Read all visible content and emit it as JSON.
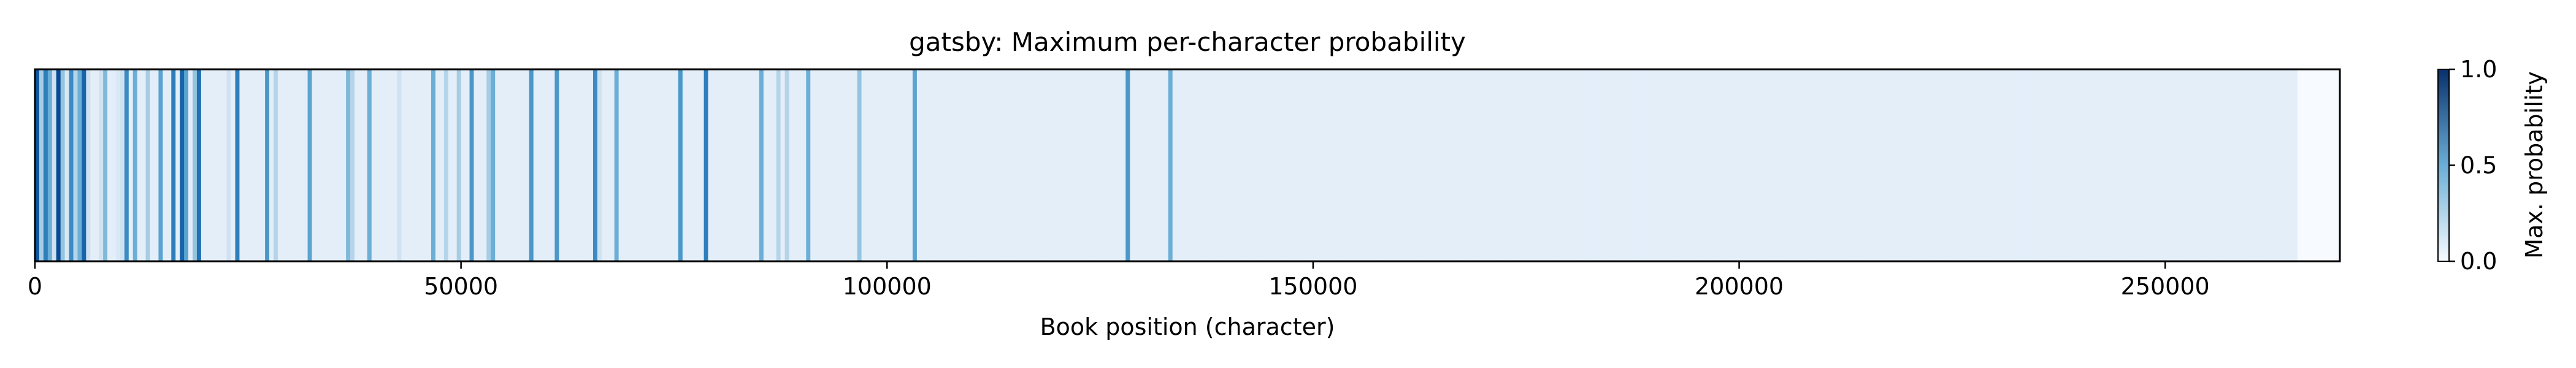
{
  "chart_data": {
    "type": "heatmap",
    "title": "gatsby: Maximum per-character probability",
    "xlabel": "Book position (character)",
    "ylabel": "",
    "xlim": [
      0,
      270500
    ],
    "x_ticks": [
      0,
      50000,
      100000,
      150000,
      200000,
      250000
    ],
    "x_tick_labels": [
      "0",
      "50000",
      "100000",
      "150000",
      "200000",
      "250000"
    ],
    "colorbar": {
      "label": "Max. probability",
      "range": [
        0.0,
        1.0
      ],
      "ticks": [
        0.0,
        0.5,
        1.0
      ],
      "tick_labels": [
        "0.0",
        "0.5",
        "1.0"
      ],
      "colormap": "Blues",
      "color_low": "#f7fbff",
      "color_high": "#08306b"
    },
    "bin_width": 500,
    "values": [
      0.85,
      0.35,
      0.7,
      0.5,
      0.2,
      0.9,
      0.4,
      0.15,
      0.65,
      0.3,
      0.5,
      0.8,
      0.2,
      0.1,
      0.1,
      0.2,
      0.45,
      0.1,
      0.1,
      0.15,
      0.2,
      0.65,
      0.1,
      0.5,
      0.1,
      0.1,
      0.35,
      0.1,
      0.1,
      0.55,
      0.1,
      0.1,
      0.7,
      0.1,
      0.8,
      0.55,
      0.1,
      0.4,
      0.75,
      0.1,
      0.1,
      0.1,
      0.1,
      0.1,
      0.1,
      0.2,
      0.1,
      0.7,
      0.1,
      0.1,
      0.1,
      0.1,
      0.1,
      0.1,
      0.6,
      0.1,
      0.3,
      0.1,
      0.1,
      0.1,
      0.1,
      0.1,
      0.1,
      0.1,
      0.55,
      0.1,
      0.1,
      0.1,
      0.1,
      0.1,
      0.1,
      0.1,
      0.1,
      0.45,
      0.3,
      0.1,
      0.1,
      0.1,
      0.5,
      0.1,
      0.1,
      0.1,
      0.1,
      0.1,
      0.1,
      0.2,
      0.1,
      0.1,
      0.1,
      0.1,
      0.1,
      0.1,
      0.1,
      0.5,
      0.1,
      0.1,
      0.3,
      0.1,
      0.1,
      0.35,
      0.1,
      0.1,
      0.6,
      0.1,
      0.1,
      0.1,
      0.35,
      0.5,
      0.1,
      0.1,
      0.1,
      0.1,
      0.1,
      0.1,
      0.1,
      0.1,
      0.6,
      0.1,
      0.1,
      0.1,
      0.1,
      0.1,
      0.6,
      0.1,
      0.1,
      0.1,
      0.1,
      0.1,
      0.1,
      0.1,
      0.1,
      0.65,
      0.2,
      0.1,
      0.1,
      0.1,
      0.5,
      0.1,
      0.1,
      0.1,
      0.1,
      0.1,
      0.1,
      0.1,
      0.1,
      0.1,
      0.1,
      0.1,
      0.1,
      0.1,
      0.1,
      0.6,
      0.1,
      0.1,
      0.1,
      0.1,
      0.1,
      0.7,
      0.1,
      0.1,
      0.1,
      0.1,
      0.1,
      0.1,
      0.1,
      0.1,
      0.1,
      0.1,
      0.1,
      0.1,
      0.5,
      0.1,
      0.1,
      0.1,
      0.3,
      0.1,
      0.3,
      0.1,
      0.1,
      0.1,
      0.1,
      0.5,
      0.1,
      0.1,
      0.1,
      0.1,
      0.1,
      0.1,
      0.1,
      0.1,
      0.1,
      0.1,
      0.1,
      0.4,
      0.1,
      0.1,
      0.1,
      0.1,
      0.1,
      0.1,
      0.1,
      0.1,
      0.1,
      0.1,
      0.1,
      0.1,
      0.55,
      0.1,
      0.1,
      0.1,
      0.1,
      0.1,
      0.1,
      0.1,
      0.1,
      0.1,
      0.1,
      0.1,
      0.1,
      0.1,
      0.1,
      0.1,
      0.1,
      0.1,
      0.1,
      0.1,
      0.1,
      0.1,
      0.1,
      0.1,
      0.1,
      0.1,
      0.1,
      0.1,
      0.1,
      0.1,
      0.1,
      0.1,
      0.1,
      0.1,
      0.1,
      0.1,
      0.1,
      0.1,
      0.1,
      0.1,
      0.1,
      0.1,
      0.1,
      0.1,
      0.1,
      0.1,
      0.1,
      0.1,
      0.1,
      0.1,
      0.6,
      0.1,
      0.1,
      0.1,
      0.1,
      0.1,
      0.1,
      0.1,
      0.1,
      0.1,
      0.5,
      0.1,
      0.1,
      0.1,
      0.1,
      0.1,
      0.1,
      0.1,
      0.1,
      0.1,
      0.1,
      0.1,
      0.1,
      0.1,
      0.1,
      0.1,
      0.1,
      0.1,
      0.1,
      0.1,
      0.1,
      0.1,
      0.1,
      0.1,
      0.1,
      0.1,
      0.1,
      0.1,
      0.1,
      0.1,
      0.1,
      0.1,
      0.1,
      0.1,
      0.1,
      0.1,
      0.1,
      0.1,
      0.1,
      0.1,
      0.1,
      0.1,
      0.1,
      0.1,
      0.1,
      0.1,
      0.1,
      0.1,
      0.1,
      0.1,
      0.1,
      0.1,
      0.1,
      0.1,
      0.1,
      0.1,
      0.1,
      0.1,
      0.1,
      0.1,
      0.1,
      0.1,
      0.1,
      0.1,
      0.1,
      0.1,
      0.1,
      0.1,
      0.1,
      0.1,
      0.1,
      0.1,
      0.1,
      0.1,
      0.1,
      0.1,
      0.1,
      0.1,
      0.1,
      0.1,
      0.1,
      0.1,
      0.1,
      0.1,
      0.1,
      0.1,
      0.1,
      0.1,
      0.1,
      0.1,
      0.1,
      0.1,
      0.1,
      0.1,
      0.1,
      0.1,
      0.1,
      0.1,
      0.1,
      0.1,
      0.1,
      0.1,
      0.1,
      0.1,
      0.1,
      0.1,
      0.1,
      0.1,
      0.1,
      0.1,
      0.1,
      0.1,
      0.1,
      0.1,
      0.1,
      0.1,
      0.1,
      0.1,
      0.1,
      0.1,
      0.1,
      0.1,
      0.1,
      0.1,
      0.1,
      0.1,
      0.1,
      0.1,
      0.1,
      0.1,
      0.1,
      0.1,
      0.1,
      0.1,
      0.1,
      0.1,
      0.1,
      0.1,
      0.1,
      0.1,
      0.1,
      0.1,
      0.1,
      0.1,
      0.1,
      0.1,
      0.1,
      0.1,
      0.1,
      0.1,
      0.1,
      0.1,
      0.1,
      0.1,
      0.1,
      0.1,
      0.1,
      0.1,
      0.1,
      0.1,
      0.1,
      0.1,
      0.1,
      0.1,
      0.1,
      0.1,
      0.1,
      0.1,
      0.1,
      0.1,
      0.1,
      0.1,
      0.1,
      0.1,
      0.1,
      0.1,
      0.1,
      0.1,
      0.1,
      0.1,
      0.1,
      0.1,
      0.1,
      0.1,
      0.1,
      0.1,
      0.1,
      0.1,
      0.1,
      0.1,
      0.1,
      0.1,
      0.1,
      0.1,
      0.1,
      0.1,
      0.1,
      0.1,
      0.1,
      0.1,
      0.1,
      0.1,
      0.1,
      0.1,
      0.1,
      0.1,
      0.1,
      0.1,
      0.1,
      0.1,
      0.1,
      0.1,
      0.1,
      0.1,
      0.1,
      0.1,
      0.1,
      0.1,
      0.1,
      0.1,
      0.1,
      0.1,
      0.1,
      0.1,
      0.1,
      0.1,
      0.1,
      0.1,
      0.1,
      0.1,
      0.1,
      0.1,
      0.1,
      0.1,
      0.1,
      0.1,
      0.1,
      0.1,
      0.1,
      0.1,
      0.1,
      0.1,
      0.1,
      0.1,
      0.1,
      0.1,
      0.1,
      0.1,
      0.1,
      0.1,
      0.1,
      0.1,
      0.1,
      0.1,
      0.1,
      0.1,
      0.1,
      0.1,
      0.1,
      0.1,
      0.1,
      0.1,
      0.1,
      0.1,
      0.1
    ]
  }
}
